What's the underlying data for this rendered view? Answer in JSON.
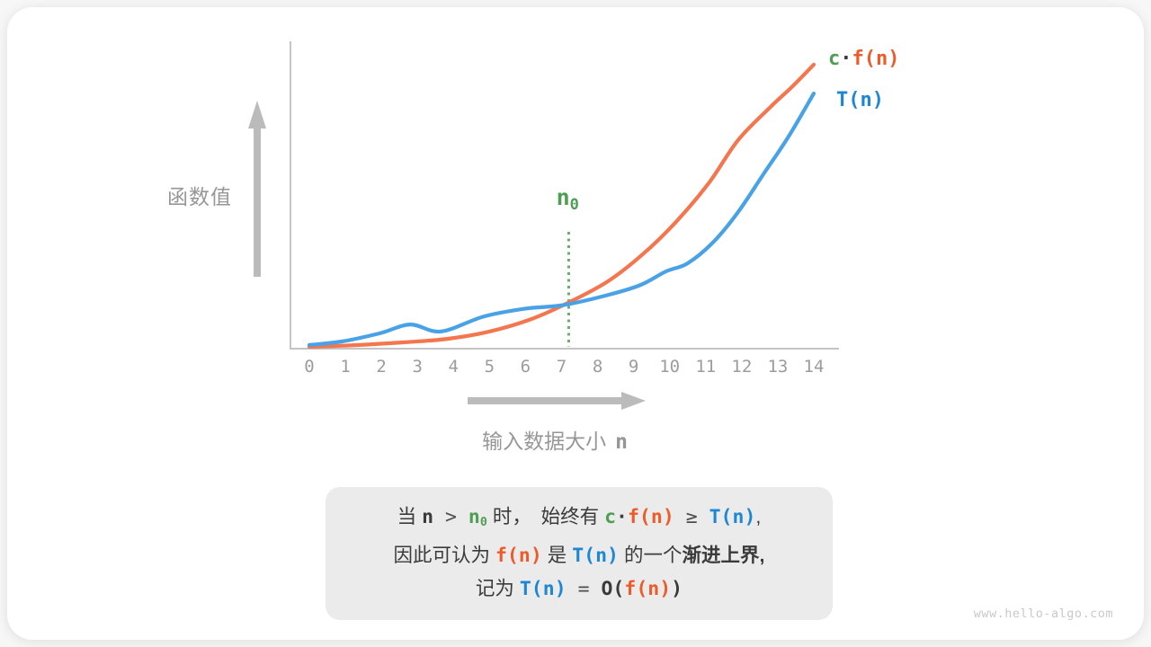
{
  "palette": {
    "page_bg": "#f7f7f7",
    "card_bg": "#ffffff",
    "orange_curve": "#f4764e",
    "blue_curve": "#4aa2e6",
    "orange_text": "#ee5b28",
    "blue_text": "#1e87d5",
    "green": "#4e9e54",
    "green_dot": "#6bae6f",
    "axis_gray": "#c4c4c4",
    "arrow_gray": "#bbbbbb",
    "label_gray": "#979797",
    "tick_gray": "#9c9c9c",
    "text_dark": "#3b3b3b",
    "box_bg": "#ebebeb",
    "watermark_gray": "#c9c9c9"
  },
  "figure": {
    "y_axis_label": "函数值",
    "x_axis_label": "输入数据大小",
    "x_axis_var": "n",
    "n0_base": "n",
    "n0_sub": "0",
    "legend_cfn": {
      "c": "c",
      "dot": "·",
      "fn": "f(n)"
    },
    "legend_tn": "T(n)"
  },
  "chart_data": {
    "type": "line",
    "title": "",
    "xlabel": "输入数据大小 n",
    "ylabel": "函数值",
    "xlim": [
      0,
      14
    ],
    "x_ticks": [
      "0",
      "1",
      "2",
      "3",
      "4",
      "5",
      "6",
      "7",
      "8",
      "9",
      "10",
      "11",
      "12",
      "13",
      "14"
    ],
    "grid": false,
    "legend_position": "top-right",
    "n0": 7.2,
    "annotations": [
      {
        "text": "n0",
        "x": 7.2,
        "style": "green dotted vertical line with label n₀"
      }
    ],
    "series": [
      {
        "name": "c·f(n)",
        "color_key": "orange_curve",
        "points": [
          [
            0,
            0
          ],
          [
            1.4,
            0.7
          ],
          [
            2.65,
            1.7
          ],
          [
            3.85,
            3
          ],
          [
            5,
            5.7
          ],
          [
            6.1,
            10
          ],
          [
            7.05,
            15.5
          ],
          [
            8.25,
            24
          ],
          [
            9.25,
            34.3
          ],
          [
            10.2,
            46.7
          ],
          [
            11.1,
            61
          ],
          [
            11.9,
            76.7
          ],
          [
            12.8,
            89
          ],
          [
            13.4,
            96.5
          ],
          [
            14,
            104.7
          ]
        ]
      },
      {
        "name": "T(n)",
        "color_key": "blue_curve",
        "points": [
          [
            0,
            0.7
          ],
          [
            0.9,
            2
          ],
          [
            1.95,
            5
          ],
          [
            2.8,
            8.3
          ],
          [
            3.65,
            5.7
          ],
          [
            4.85,
            11.3
          ],
          [
            6,
            14.2
          ],
          [
            7.05,
            15.5
          ],
          [
            8.3,
            19.3
          ],
          [
            9.2,
            23
          ],
          [
            9.9,
            28
          ],
          [
            10.5,
            31
          ],
          [
            11.2,
            38.7
          ],
          [
            11.9,
            50
          ],
          [
            12.6,
            64
          ],
          [
            13.3,
            78
          ],
          [
            14,
            94
          ]
        ]
      }
    ]
  },
  "explanation": {
    "lines": [
      [
        {
          "t": "当 ",
          "style": "plain"
        },
        {
          "t": "n",
          "style": "mono-dark"
        },
        {
          "t": " > ",
          "style": "op"
        },
        {
          "t": "n",
          "style": "mono-green"
        },
        {
          "t": "0",
          "style": "mono-green-sub"
        },
        {
          "t": " 时，　始终有 ",
          "style": "plain"
        },
        {
          "t": "c",
          "style": "mono-green"
        },
        {
          "t": "·",
          "style": "mono-dark"
        },
        {
          "t": "f(n)",
          "style": "mono-orange"
        },
        {
          "t": " ≥ ",
          "style": "op"
        },
        {
          "t": "T(n)",
          "style": "mono-blue"
        },
        {
          "t": ",",
          "style": "plain"
        }
      ],
      [
        {
          "t": "因此可认为 ",
          "style": "plain"
        },
        {
          "t": "f(n)",
          "style": "mono-orange"
        },
        {
          "t": " 是 ",
          "style": "plain"
        },
        {
          "t": "T(n)",
          "style": "mono-blue"
        },
        {
          "t": " 的一个",
          "style": "plain"
        },
        {
          "t": "渐进上界",
          "style": "bold"
        },
        {
          "t": ",",
          "style": "bold"
        }
      ],
      [
        {
          "t": "记为 ",
          "style": "plain"
        },
        {
          "t": "T(n)",
          "style": "mono-blue"
        },
        {
          "t": " = ",
          "style": "op"
        },
        {
          "t": "O(",
          "style": "mono-dark"
        },
        {
          "t": "f(n)",
          "style": "mono-orange"
        },
        {
          "t": ")",
          "style": "mono-dark"
        }
      ]
    ]
  },
  "watermark": "www.hello-algo.com"
}
